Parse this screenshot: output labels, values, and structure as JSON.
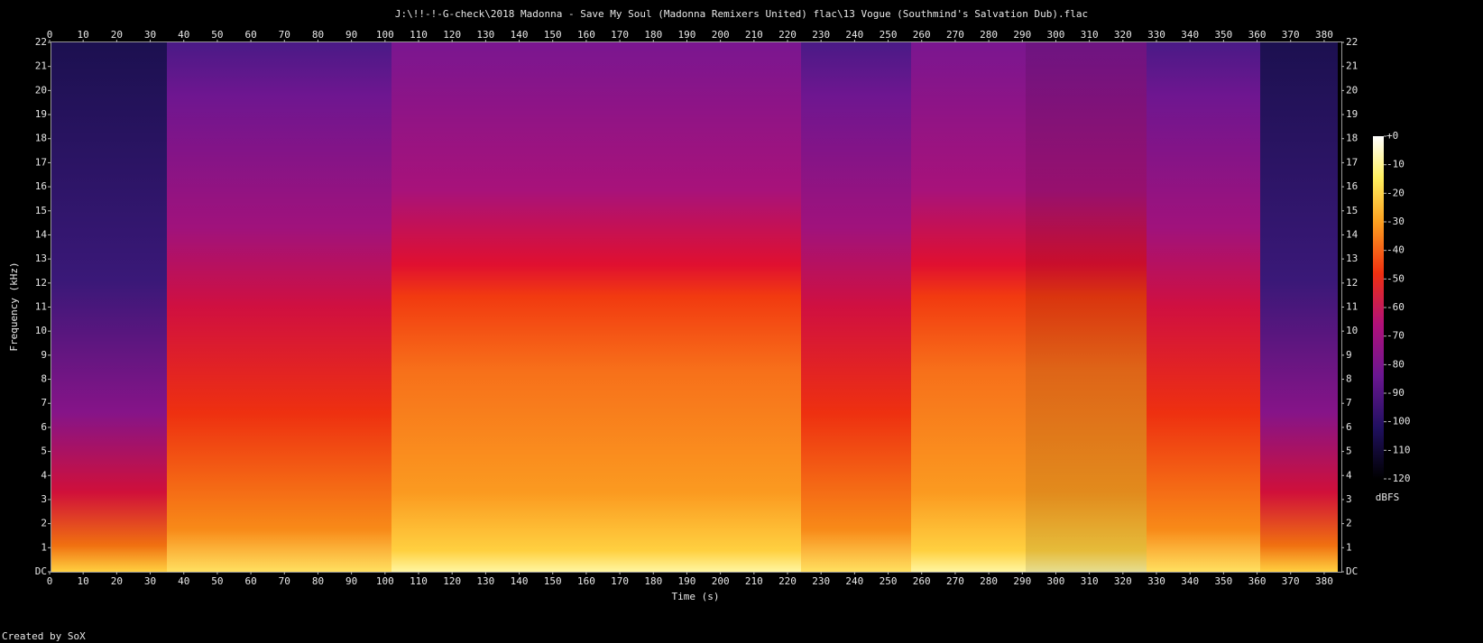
{
  "chart_data": {
    "type": "spectrogram",
    "title": "J:\\!!-!-G-check\\2018 Madonna - Save My Soul (Madonna Remixers United) flac\\13 Vogue (Southmind's Salvation Dub).flac",
    "xlabel": "Time (s)",
    "ylabel": "Frequency (kHz)",
    "xlim": [
      0,
      385.4
    ],
    "xticks": [
      0,
      10,
      20,
      30,
      40,
      50,
      60,
      70,
      80,
      90,
      100,
      110,
      120,
      130,
      140,
      150,
      160,
      170,
      180,
      190,
      200,
      210,
      220,
      230,
      240,
      250,
      260,
      270,
      280,
      290,
      300,
      310,
      320,
      330,
      340,
      350,
      360,
      370,
      380
    ],
    "ylim": [
      0,
      22
    ],
    "yticks": [
      {
        "value": 0,
        "label": "DC"
      },
      1,
      2,
      3,
      4,
      5,
      6,
      7,
      8,
      9,
      10,
      11,
      12,
      13,
      14,
      15,
      16,
      17,
      18,
      19,
      20,
      21,
      22
    ],
    "colorbar": {
      "label": "dBFS",
      "lim": [
        -120,
        0
      ],
      "ticks": [
        {
          "value": 0,
          "label": "+0"
        },
        -10,
        -20,
        -30,
        -40,
        -50,
        -60,
        -70,
        -80,
        -90,
        -100,
        -110,
        -120
      ]
    }
  },
  "footer": "Created by SoX"
}
